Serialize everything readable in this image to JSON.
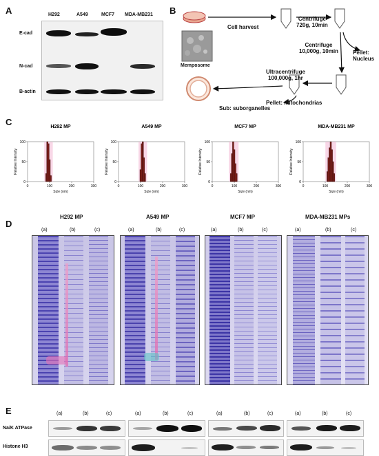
{
  "panels": {
    "A": "A",
    "B": "B",
    "C": "C",
    "D": "D",
    "E": "E"
  },
  "panelA": {
    "cell_lines": [
      "H292",
      "A549",
      "MCF7",
      "MDA-MB231"
    ],
    "markers": [
      "E-cad",
      "N-cad",
      "B-actin"
    ]
  },
  "panelB": {
    "cell_harvest": "Cell harvest",
    "centrifuge1": "Centrifuge\n720g, 10min",
    "centrifuge2": "Centrifuge\n10,000g, 10min",
    "pellet_nucleus": "Pellet:\nNucleus",
    "ultracentrifuge": "Ultracentrifuge\n100,000g, 1hr",
    "pellet_mito": "Pellet: mitochondrias",
    "sub": "Sub: suborganelles",
    "memposome": "Memposome"
  },
  "panelC": {
    "ylabel": "Relative Intensity",
    "xlabel": "Size (nm)"
  },
  "chart_data": [
    {
      "type": "bar",
      "title": "H292 MP",
      "xlabel": "Size (nm)",
      "ylabel": "Relative Intensity",
      "xlim": [
        0,
        300
      ],
      "ylim": [
        0,
        100
      ],
      "xticks": [
        0,
        100,
        200,
        300
      ],
      "yticks": [
        0,
        50,
        100
      ],
      "x": [
        85,
        90,
        95,
        100,
        105
      ],
      "values": [
        20,
        100,
        95,
        55,
        15
      ]
    },
    {
      "type": "bar",
      "title": "A549 MP",
      "xlabel": "Size (nm)",
      "ylabel": "Relative Intensity",
      "xlim": [
        0,
        300
      ],
      "ylim": [
        0,
        100
      ],
      "xticks": [
        0,
        100,
        200,
        300
      ],
      "yticks": [
        0,
        50,
        100
      ],
      "x": [
        100,
        105,
        110,
        115,
        120
      ],
      "values": [
        30,
        95,
        100,
        60,
        20
      ]
    },
    {
      "type": "bar",
      "title": "MCF7 MP",
      "xlabel": "Size (nm)",
      "ylabel": "Relative Intensity",
      "xlim": [
        0,
        300
      ],
      "ylim": [
        0,
        100
      ],
      "xticks": [
        0,
        100,
        200,
        300
      ],
      "yticks": [
        0,
        50,
        100
      ],
      "x": [
        85,
        90,
        95,
        100,
        105,
        110
      ],
      "values": [
        20,
        70,
        100,
        80,
        45,
        20
      ]
    },
    {
      "type": "bar",
      "title": "MDA-MB231 MP",
      "xlabel": "Size (nm)",
      "ylabel": "Relative Intensity",
      "xlim": [
        0,
        300
      ],
      "ylim": [
        0,
        100
      ],
      "xticks": [
        0,
        100,
        200,
        300
      ],
      "yticks": [
        0,
        50,
        100
      ],
      "x": [
        110,
        115,
        120,
        125,
        130,
        135,
        140
      ],
      "values": [
        25,
        60,
        85,
        100,
        80,
        50,
        20
      ]
    }
  ],
  "panelD": {
    "gels": [
      "H292 MP",
      "A549 MP",
      "MCF7 MP",
      "MDA-MB231 MPs"
    ],
    "lanes": [
      "(a)",
      "(b)",
      "(c)"
    ]
  },
  "panelE": {
    "lanes": [
      "(a)",
      "(b)",
      "(c)"
    ],
    "proteins": [
      "Na/K ATPase",
      "Histone H3"
    ]
  }
}
